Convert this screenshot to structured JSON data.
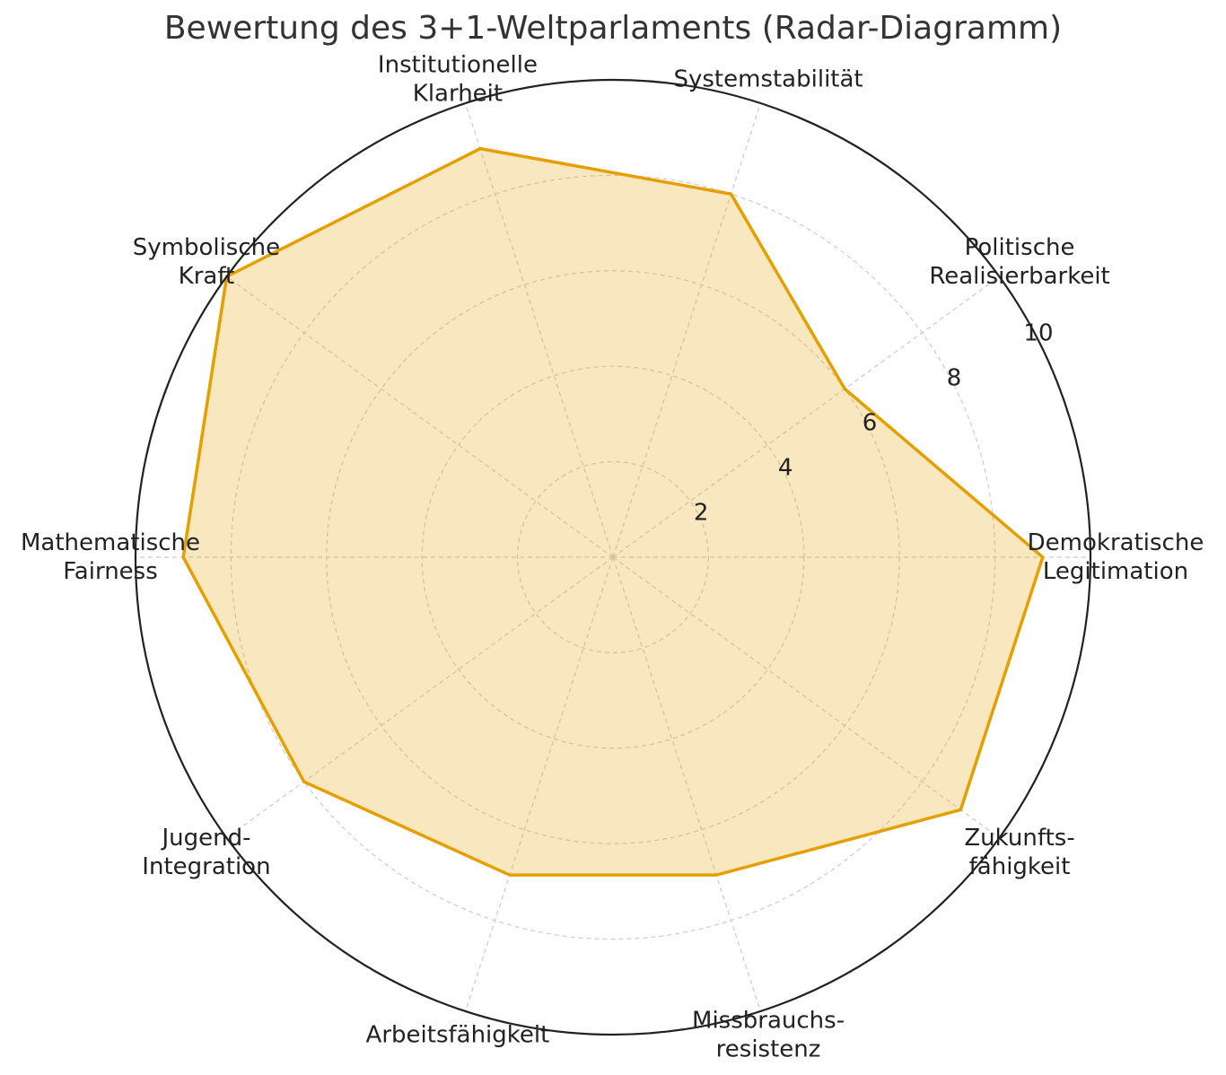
{
  "chart_data": {
    "type": "radar",
    "title": "Bewertung des 3+1-Weltparlaments (Radar-Diagramm)",
    "categories": [
      [
        "Demokratische",
        "Legitimation"
      ],
      [
        "Politische",
        "Realisierbarkeit"
      ],
      [
        "Systemstabilität"
      ],
      [
        "Institutionelle",
        "Klarheit"
      ],
      [
        "Symbolische",
        "Kraft"
      ],
      [
        "Mathematische",
        "Fairness"
      ],
      [
        "Jugend-",
        "Integration"
      ],
      [
        "Arbeitsfähigkeit"
      ],
      [
        "Missbrauchs-",
        "resistenz"
      ],
      [
        "Zukunfts-",
        "fähigkeit"
      ]
    ],
    "values": [
      9,
      6,
      8,
      9,
      10,
      9,
      8,
      7,
      7,
      9
    ],
    "color": "#e69f00",
    "ylim": [
      0,
      10
    ],
    "yticks": [
      2,
      4,
      6,
      8,
      10
    ],
    "grid": true
  }
}
